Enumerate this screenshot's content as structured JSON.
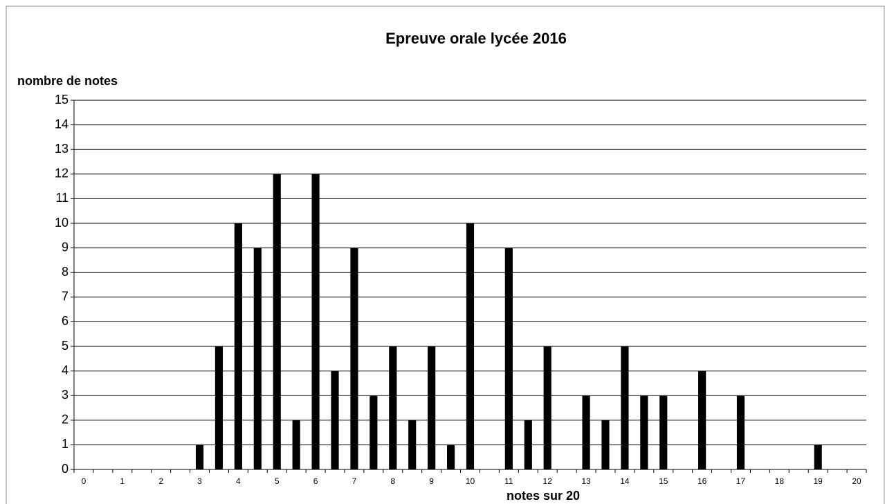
{
  "chart_data": {
    "type": "bar",
    "title": "Epreuve orale lycée 2016",
    "y_label": "nombre de notes",
    "x_label": "notes sur 20",
    "categories": [
      "0",
      null,
      "1",
      null,
      "2",
      null,
      "3",
      null,
      "4",
      null,
      "5",
      null,
      "6",
      null,
      "7",
      null,
      "8",
      null,
      "9",
      null,
      "10",
      null,
      "11",
      null,
      "12",
      null,
      "13",
      null,
      "14",
      null,
      "15",
      null,
      "16",
      null,
      "17",
      null,
      "18",
      null,
      "19",
      null,
      "20"
    ],
    "values": [
      0,
      0,
      0,
      0,
      0,
      0,
      1,
      5,
      10,
      9,
      12,
      2,
      12,
      4,
      9,
      3,
      5,
      2,
      5,
      1,
      10,
      0,
      9,
      2,
      5,
      0,
      3,
      2,
      5,
      3,
      3,
      0,
      4,
      0,
      3,
      0,
      0,
      0,
      1,
      0,
      0
    ],
    "color": "#000000",
    "ylim": [
      0,
      15
    ],
    "yticks": [
      0,
      1,
      2,
      3,
      4,
      5,
      6,
      7,
      8,
      9,
      10,
      11,
      12,
      13,
      14,
      15
    ],
    "grid": true
  }
}
